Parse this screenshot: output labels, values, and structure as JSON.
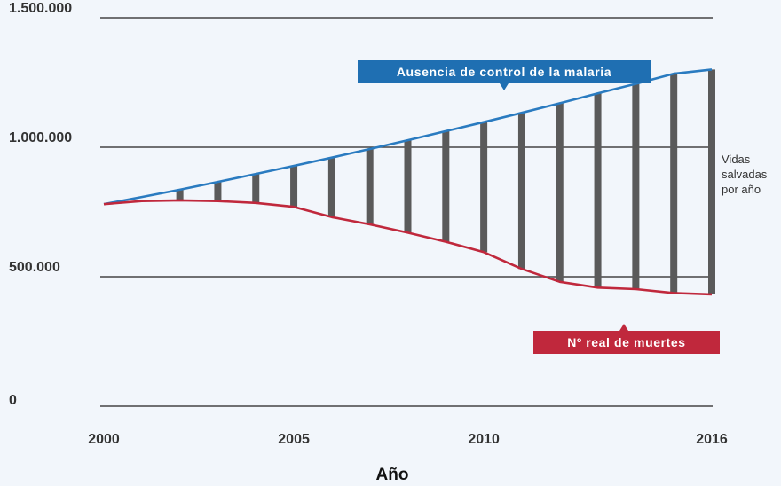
{
  "chart_data": {
    "type": "line",
    "x": [
      2000,
      2001,
      2002,
      2003,
      2004,
      2005,
      2006,
      2007,
      2008,
      2009,
      2010,
      2011,
      2012,
      2013,
      2014,
      2015,
      2016
    ],
    "xticks": [
      "2000",
      "2005",
      "2010",
      "2016"
    ],
    "xtick_values": [
      2000,
      2005,
      2010,
      2016
    ],
    "yticks": [
      "0",
      "500.000",
      "1.000.000",
      "1.500.000"
    ],
    "ytick_values": [
      0,
      500000,
      1000000,
      1500000
    ],
    "xlabel": "Año",
    "ylabel": "",
    "xlim": [
      2000,
      2016
    ],
    "ylim": [
      0,
      1500000
    ],
    "grid": "horizontal",
    "series": [
      {
        "name": "Ausencia de control de la malaria",
        "color": "#2a7bc0",
        "values": [
          780000,
          808000,
          836000,
          866000,
          897000,
          928000,
          960000,
          993000,
          1027000,
          1062000,
          1097000,
          1133000,
          1170000,
          1208000,
          1245000,
          1284000,
          1300000
        ]
      },
      {
        "name": "Nº real de muertes",
        "color": "#c0283c",
        "values": [
          780000,
          792000,
          795000,
          792000,
          785000,
          770000,
          730000,
          702000,
          670000,
          635000,
          595000,
          530000,
          480000,
          458000,
          452000,
          437000,
          432000
        ]
      }
    ],
    "bars_label": "Vidas salvadas por año",
    "bars_color": "#5a5a5a",
    "bar_years": [
      2002,
      2003,
      2004,
      2005,
      2006,
      2007,
      2008,
      2009,
      2010,
      2011,
      2012,
      2013,
      2014,
      2015,
      2016
    ],
    "callouts": {
      "top": {
        "text": "Ausencia de control de la malaria",
        "color": "#1f6fb2"
      },
      "bottom": {
        "text": "Nº real de muertes",
        "color": "#c0283c"
      }
    },
    "side_label_lines": [
      "Vidas",
      "salvadas",
      "por año"
    ]
  }
}
